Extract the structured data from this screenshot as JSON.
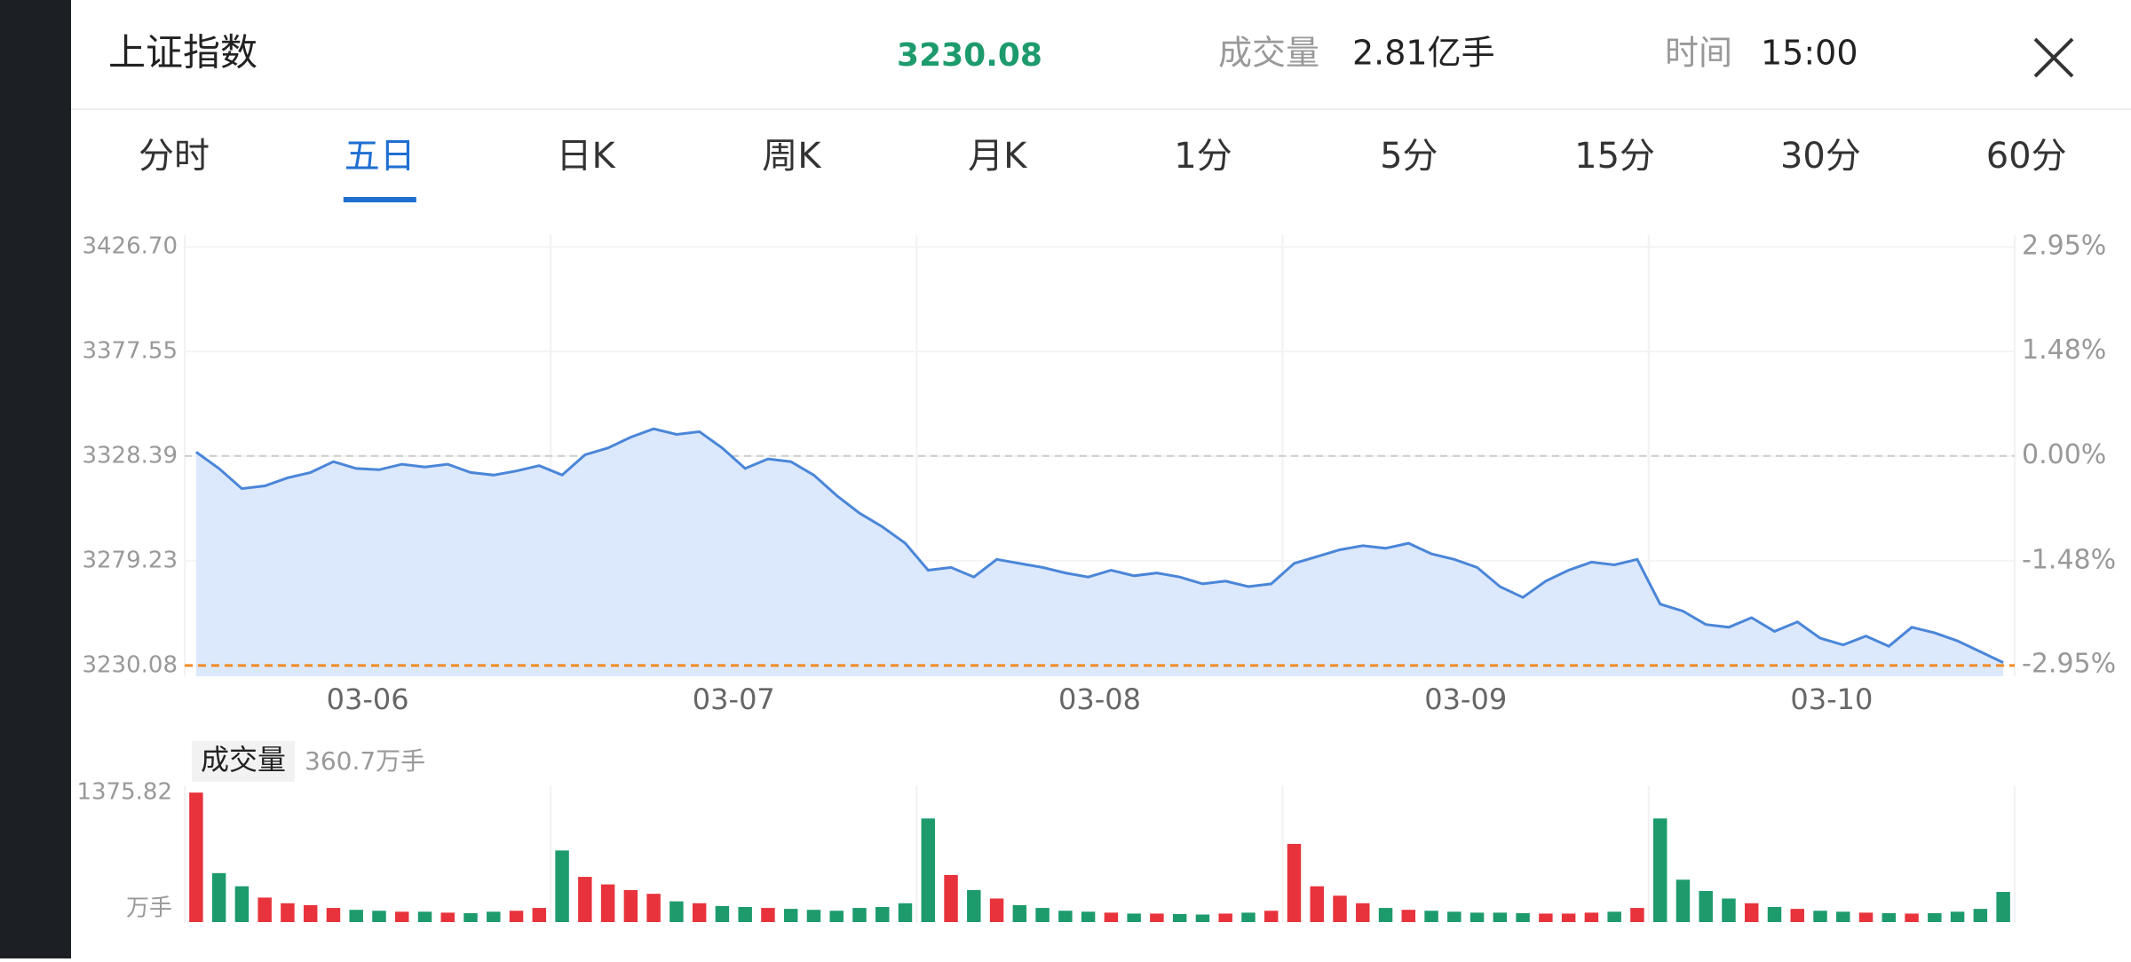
{
  "header": {
    "title": "上证指数",
    "price": "3230.08",
    "volume_label": "成交量",
    "volume": "2.81亿手",
    "time_label": "时间",
    "time": "15:00"
  },
  "tabs": {
    "items": [
      "分时",
      "五日",
      "日K",
      "周K",
      "月K",
      "1分",
      "5分",
      "15分",
      "30分",
      "60分"
    ],
    "active": 1
  },
  "chart_data": {
    "type": "line",
    "categories": [
      "03-06",
      "03-07",
      "03-08",
      "03-09",
      "03-10"
    ],
    "price": {
      "color": "#4a86d8",
      "fill": "#dce8fc",
      "values": [
        3330.3,
        3322.6,
        3313.1,
        3314.4,
        3318.2,
        3320.7,
        3325.8,
        3322.6,
        3322.0,
        3324.6,
        3323.3,
        3324.6,
        3320.7,
        3319.5,
        3321.4,
        3323.9,
        3319.5,
        3329.0,
        3332.2,
        3337.3,
        3341.2,
        3338.6,
        3339.9,
        3332.2,
        3322.6,
        3327.1,
        3325.8,
        3319.5,
        3309.9,
        3301.6,
        3295.2,
        3287.5,
        3274.8,
        3276.1,
        3271.6,
        3279.9,
        3278.0,
        3276.1,
        3273.5,
        3271.6,
        3274.8,
        3272.2,
        3273.5,
        3271.6,
        3268.4,
        3269.7,
        3267.1,
        3268.4,
        3278.0,
        3281.2,
        3284.4,
        3286.3,
        3285.1,
        3287.5,
        3282.5,
        3279.9,
        3276.1,
        3267.1,
        3262.0,
        3269.7,
        3274.8,
        3278.6,
        3277.3,
        3279.9,
        3258.9,
        3255.6,
        3249.3,
        3248.0,
        3252.5,
        3246.1,
        3250.5,
        3242.9,
        3239.7,
        3243.9,
        3239.1,
        3248.0,
        3245.4,
        3241.6,
        3236.5,
        3231.4
      ]
    },
    "ylim": [
      3225,
      3428
    ],
    "yticks": [
      3230.08,
      3279.23,
      3328.39,
      3377.55,
      {
        "value": 3426.7,
        "label": "3426.70"
      }
    ],
    "y2lim": [
      -3.11,
      2.99
    ],
    "y2ticks": [
      {
        "value": -2.95,
        "label": "-2.95%"
      },
      {
        "value": -1.48,
        "label": "-1.48%"
      },
      {
        "value": 0,
        "label": "0.00%"
      },
      {
        "value": 1.48,
        "label": "1.48%"
      },
      {
        "value": 2.95,
        "label": "2.95%"
      }
    ],
    "current_line_color": "#f08a24",
    "volume": {
      "label": "成交量",
      "total": "360.7万手",
      "unit": "万手",
      "up_color": "#e8333c",
      "down_color": "#1d9b6c",
      "ylim": [
        0,
        1375.82
      ],
      "yticks": [
        1375.82
      ],
      "values": [
        1375,
        520,
        380,
        260,
        200,
        180,
        150,
        130,
        120,
        110,
        110,
        100,
        95,
        110,
        120,
        150,
        760,
        480,
        400,
        340,
        300,
        220,
        200,
        170,
        160,
        150,
        140,
        130,
        120,
        150,
        160,
        200,
        1100,
        500,
        340,
        250,
        180,
        150,
        120,
        110,
        100,
        90,
        90,
        85,
        80,
        90,
        100,
        120,
        830,
        380,
        280,
        200,
        150,
        130,
        120,
        110,
        100,
        100,
        95,
        90,
        90,
        100,
        110,
        150,
        1100,
        450,
        330,
        250,
        200,
        160,
        140,
        120,
        110,
        100,
        95,
        90,
        95,
        110,
        140,
        320
      ]
    }
  }
}
